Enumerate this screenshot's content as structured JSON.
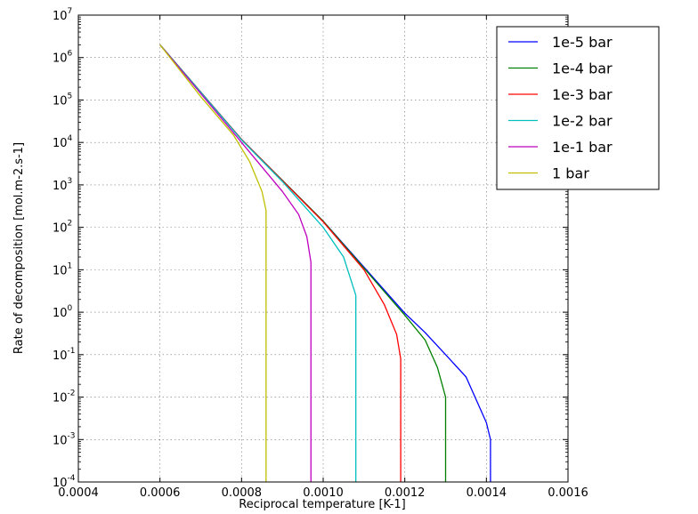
{
  "chart_data": {
    "type": "line",
    "title": "",
    "xlabel": "Reciprocal temperature [K-1]",
    "ylabel": "Rate of decomposition [mol.m-2.s-1]",
    "xlim": [
      0.0004,
      0.0016
    ],
    "ylim_log10": [
      -4,
      7
    ],
    "y_scale": "log",
    "grid": true,
    "legend_position": "top-right",
    "x_ticks": [
      "0.0004",
      "0.0006",
      "0.0008",
      "0.0010",
      "0.0012",
      "0.0014",
      "0.0016"
    ],
    "y_ticks": [
      {
        "base": "10",
        "exp": "-4"
      },
      {
        "base": "10",
        "exp": "-3"
      },
      {
        "base": "10",
        "exp": "-2"
      },
      {
        "base": "10",
        "exp": "-1"
      },
      {
        "base": "10",
        "exp": "0"
      },
      {
        "base": "10",
        "exp": "1"
      },
      {
        "base": "10",
        "exp": "2"
      },
      {
        "base": "10",
        "exp": "3"
      },
      {
        "base": "10",
        "exp": "4"
      },
      {
        "base": "10",
        "exp": "5"
      },
      {
        "base": "10",
        "exp": "6"
      },
      {
        "base": "10",
        "exp": "7"
      }
    ],
    "series": [
      {
        "name": "1e-5 bar",
        "color": "#0000ff",
        "points": [
          [
            0.0006,
            2000000
          ],
          [
            0.0008,
            11750
          ],
          [
            0.001,
            140
          ],
          [
            0.0012,
            0.95
          ],
          [
            0.00125,
            0.33
          ],
          [
            0.0013,
            0.1
          ],
          [
            0.00135,
            0.03
          ],
          [
            0.0014,
            0.0025
          ],
          [
            0.00141,
            0.001
          ],
          [
            0.00141,
            0.0001
          ]
        ]
      },
      {
        "name": "1e-4 bar",
        "color": "#008000",
        "points": [
          [
            0.0006,
            2000000
          ],
          [
            0.0008,
            11750
          ],
          [
            0.001,
            140
          ],
          [
            0.0012,
            0.85
          ],
          [
            0.00125,
            0.22
          ],
          [
            0.00128,
            0.05
          ],
          [
            0.0013,
            0.01
          ],
          [
            0.0013,
            0.0001
          ]
        ]
      },
      {
        "name": "1e-3 bar",
        "color": "#ff0000",
        "points": [
          [
            0.0006,
            2000000
          ],
          [
            0.0008,
            11750
          ],
          [
            0.001,
            135
          ],
          [
            0.0011,
            10
          ],
          [
            0.00115,
            1.5
          ],
          [
            0.00118,
            0.3
          ],
          [
            0.00119,
            0.08
          ],
          [
            0.00119,
            0.0001
          ]
        ]
      },
      {
        "name": "1e-2 bar",
        "color": "#00bfbf",
        "points": [
          [
            0.0006,
            2000000
          ],
          [
            0.0008,
            11500
          ],
          [
            0.0009,
            1200
          ],
          [
            0.001,
            100
          ],
          [
            0.00105,
            20
          ],
          [
            0.00107,
            5
          ],
          [
            0.00108,
            2.5
          ],
          [
            0.00108,
            0.0001
          ]
        ]
      },
      {
        "name": "1e-1 bar",
        "color": "#bf00bf",
        "points": [
          [
            0.0006,
            2000000
          ],
          [
            0.0008,
            10000
          ],
          [
            0.0009,
            700
          ],
          [
            0.00094,
            200
          ],
          [
            0.00096,
            60
          ],
          [
            0.00097,
            15
          ],
          [
            0.00097,
            0.0001
          ]
        ]
      },
      {
        "name": "1 bar",
        "color": "#bfbf00",
        "points": [
          [
            0.0006,
            2000000
          ],
          [
            0.0007,
            120000
          ],
          [
            0.00078,
            15000
          ],
          [
            0.00082,
            3500
          ],
          [
            0.00085,
            700
          ],
          [
            0.00086,
            250
          ],
          [
            0.00086,
            0.0001
          ]
        ]
      }
    ]
  }
}
